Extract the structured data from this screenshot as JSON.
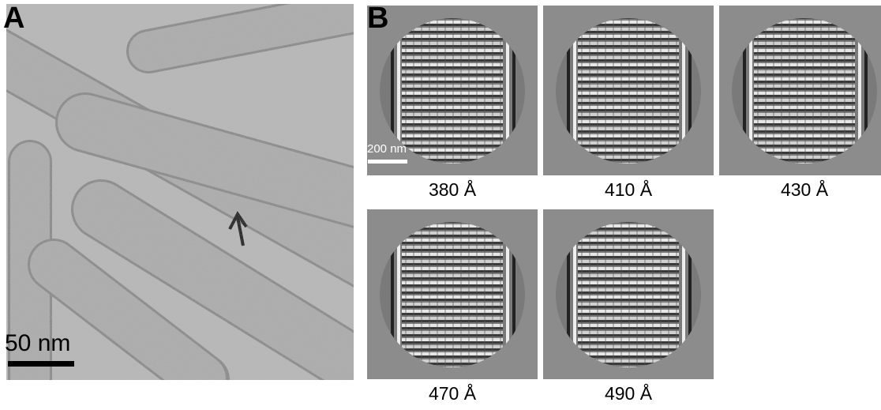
{
  "figure": {
    "panel_a": {
      "letter": "A",
      "scale_bar_label": "50 nm"
    },
    "panel_b": {
      "letter": "B",
      "scale_bar_label": "200 nm",
      "tiles": [
        {
          "caption": "380 Å"
        },
        {
          "caption": "410 Å"
        },
        {
          "caption": "430 Å"
        },
        {
          "caption": "470 Å"
        },
        {
          "caption": "490 Å"
        }
      ]
    }
  }
}
